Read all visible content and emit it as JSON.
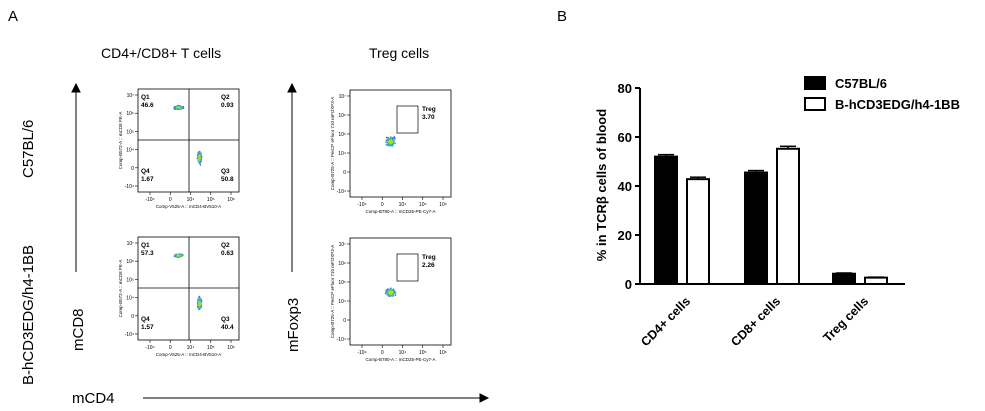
{
  "panels": {
    "a": "A",
    "b": "B"
  },
  "flow": {
    "col_titles": [
      "CD4+/CD8+ T cells",
      "Treg cells"
    ],
    "row_labels": [
      "C57BL/6",
      "B-hCD3EDG/h4-1BB"
    ],
    "axis_x": "mCD4",
    "axis_y_cd8": "mCD8",
    "axis_y_foxp3": "mFoxp3",
    "quad_plots": [
      {
        "q1": "Q1",
        "q1_val": "46.6",
        "q2": "Q2",
        "q2_val": "0.93",
        "q3": "Q3",
        "q3_val": "50.8",
        "q4": "Q4",
        "q4_val": "1.67",
        "xlab": "Comp-V525-A :: mCD4-BV510-A",
        "ylab": "Comp-B572-A :: mCD8 PE-A"
      },
      {
        "q1": "Q1",
        "q1_val": "57.3",
        "q2": "Q2",
        "q2_val": "0.63",
        "q3": "Q3",
        "q3_val": "40.4",
        "q4": "Q4",
        "q4_val": "1.57",
        "xlab": "Comp-V525-A :: mCD4-BV510-A",
        "ylab": "Comp-B572-A :: mCD8 PE-A"
      }
    ],
    "treg_plots": [
      {
        "gate": "Treg",
        "val": "3.70",
        "xlab": "Comp-B780-A :: mCD25-PE-Cy7-A",
        "ylab": "Comp-B725-A :: PerCP eFluor 710 mFOXP3-A"
      },
      {
        "gate": "Treg",
        "val": "2.26",
        "xlab": "Comp-B780-A :: mCD25-PE-Cy7-A",
        "ylab": "Comp-B725-A :: PerCP eFluor 710 mFOXP3-A"
      }
    ],
    "tick_x": [
      "-10⁴",
      "0",
      "10⁴",
      "10⁵",
      "10⁶"
    ],
    "tick_y": [
      "10⁷",
      "10⁶",
      "10⁵",
      "10⁴",
      "0",
      "-10⁴"
    ]
  },
  "chart_data": {
    "type": "bar",
    "categories": [
      "CD4+ cells",
      "CD8+ cells",
      "Treg cells"
    ],
    "series": [
      {
        "name": "C57BL/6",
        "values": [
          52,
          45.5,
          4.2
        ],
        "errors": [
          0.8,
          0.8,
          0.3
        ],
        "color": "#000000"
      },
      {
        "name": "B-hCD3EDG/h4-1BB",
        "values": [
          42.8,
          55.2,
          2.6
        ],
        "errors": [
          0.8,
          1.0,
          0.2
        ],
        "color": "#ffffff"
      }
    ],
    "ylabel": "% in TCRβ cells of blood",
    "xlabel": "",
    "ylim": [
      0,
      80
    ],
    "yticks": [
      "0",
      "20",
      "40",
      "60",
      "80"
    ],
    "grid": false,
    "legend_position": "top-right"
  }
}
